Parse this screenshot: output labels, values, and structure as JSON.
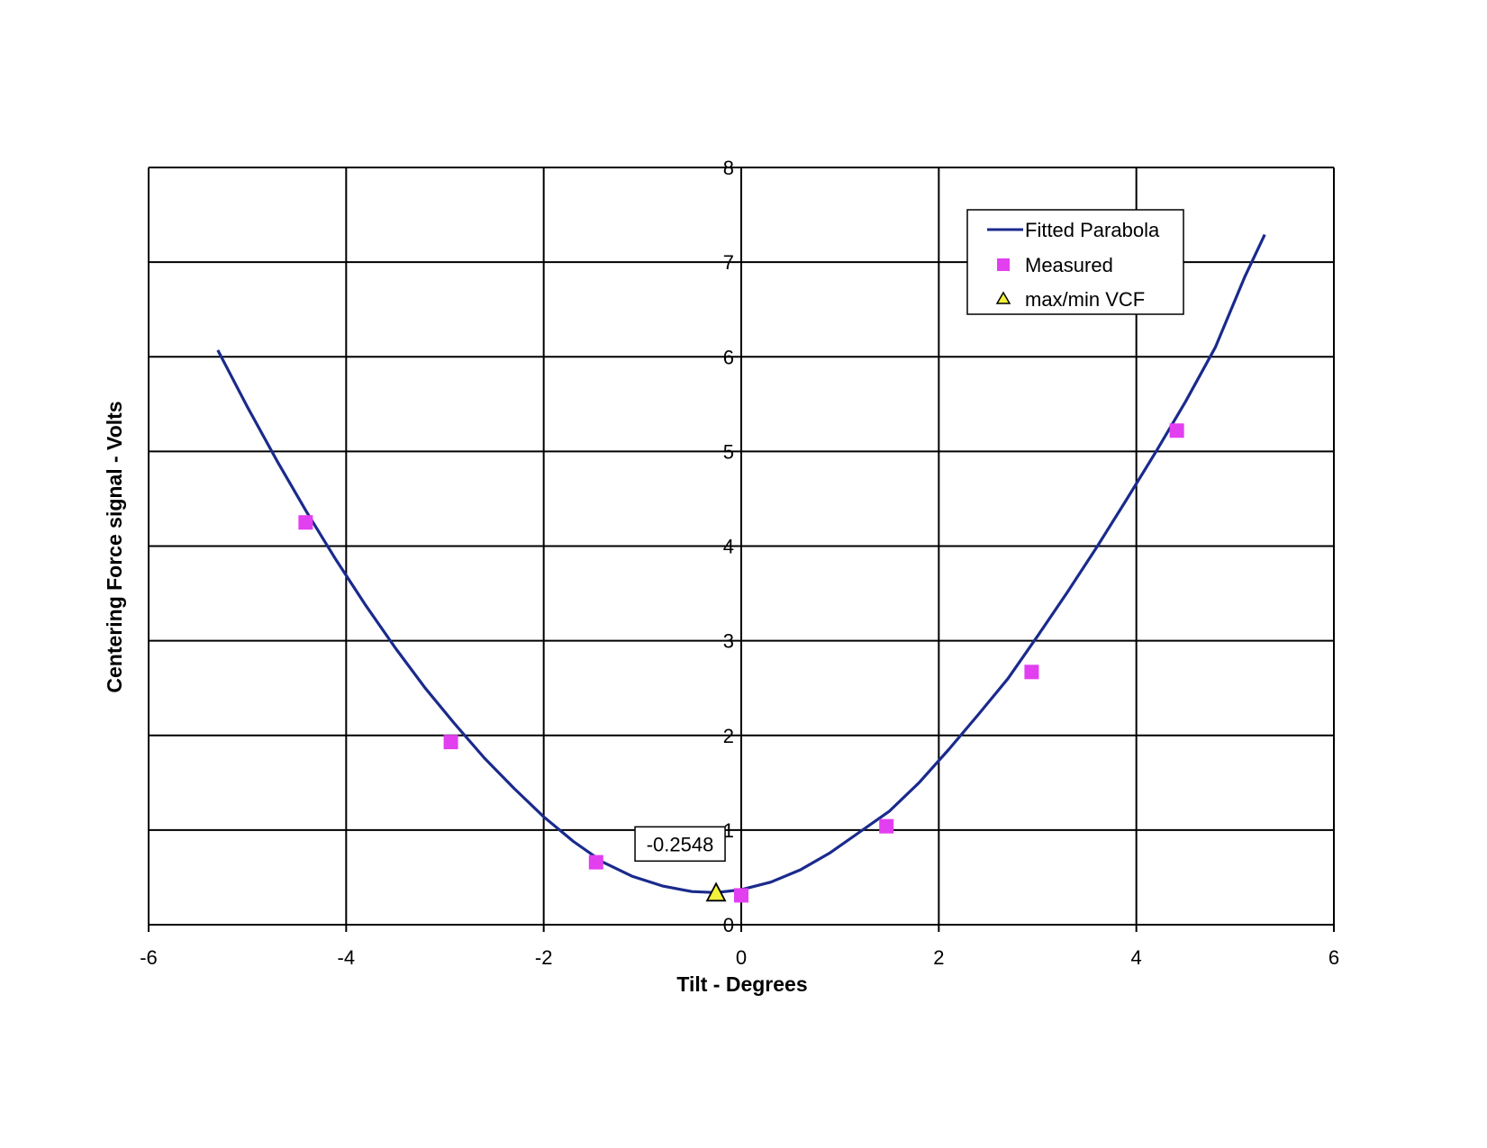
{
  "chart_data": {
    "type": "scatter",
    "xlabel": "Tilt - Degrees",
    "ylabel": "Centering Force signal - Volts",
    "xlim": [
      -6,
      6
    ],
    "ylim": [
      0,
      8
    ],
    "x_ticks": [
      "-6",
      "-4",
      "-2",
      "0",
      "2",
      "4",
      "6"
    ],
    "y_ticks": [
      "0",
      "1",
      "2",
      "3",
      "4",
      "5",
      "6",
      "7",
      "8"
    ],
    "grid": true,
    "legend_position": "top-right",
    "legend": [
      "Fitted Parabola",
      "Measured",
      "max/min VCF"
    ],
    "series": [
      {
        "name": "Fitted Parabola",
        "kind": "line",
        "color": "#1a2a8c",
        "x": [
          -5.3,
          -5.0,
          -4.7,
          -4.4,
          -4.1,
          -3.8,
          -3.5,
          -3.2,
          -2.9,
          -2.6,
          -2.3,
          -2.0,
          -1.7,
          -1.4,
          -1.1,
          -0.8,
          -0.5,
          -0.2548,
          0.0,
          0.3,
          0.6,
          0.9,
          1.2,
          1.5,
          1.8,
          2.1,
          2.4,
          2.7,
          3.0,
          3.3,
          3.6,
          3.9,
          4.2,
          4.5,
          4.8,
          5.1,
          5.3
        ],
        "y": [
          6.07,
          5.47,
          4.9,
          4.36,
          3.85,
          3.37,
          2.92,
          2.5,
          2.12,
          1.76,
          1.44,
          1.14,
          0.88,
          0.66,
          0.51,
          0.41,
          0.35,
          0.34,
          0.37,
          0.45,
          0.58,
          0.76,
          0.98,
          1.2,
          1.5,
          1.85,
          2.22,
          2.6,
          3.05,
          3.51,
          3.99,
          4.49,
          5.0,
          5.53,
          6.1,
          6.85,
          7.29
        ]
      },
      {
        "name": "Measured",
        "kind": "scatter",
        "marker": "square",
        "color": "#e23ff0",
        "x": [
          -4.41,
          -2.94,
          -1.47,
          0.0,
          1.47,
          2.94,
          4.41
        ],
        "y": [
          4.25,
          1.93,
          0.66,
          0.31,
          1.04,
          2.67,
          5.22
        ]
      },
      {
        "name": "max/min VCF",
        "kind": "scatter",
        "marker": "triangle",
        "color": "#f2f23a",
        "x": [
          -0.2548
        ],
        "y": [
          0.33
        ]
      }
    ],
    "annotations": [
      {
        "text": "-0.2548",
        "x": -0.2548,
        "y": 0.33
      }
    ]
  }
}
